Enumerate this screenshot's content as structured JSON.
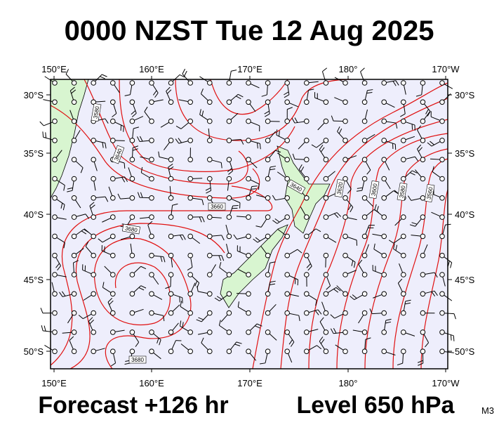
{
  "title": "0000 NZST Tue 12 Aug 2025",
  "forecast": "Forecast +126 hr",
  "level": "Level 650 hPa",
  "model": "M3",
  "longitude_labels": [
    "150°E",
    "160°E",
    "170°E",
    "180°",
    "170°W"
  ],
  "latitude_labels": [
    "30°S",
    "35°S",
    "40°S",
    "45°S",
    "50°S"
  ],
  "contour_labels": [
    "3580",
    "3640",
    "3660",
    "3680",
    "3680",
    "3640",
    "3620",
    "3600",
    "3580",
    "3560"
  ]
}
